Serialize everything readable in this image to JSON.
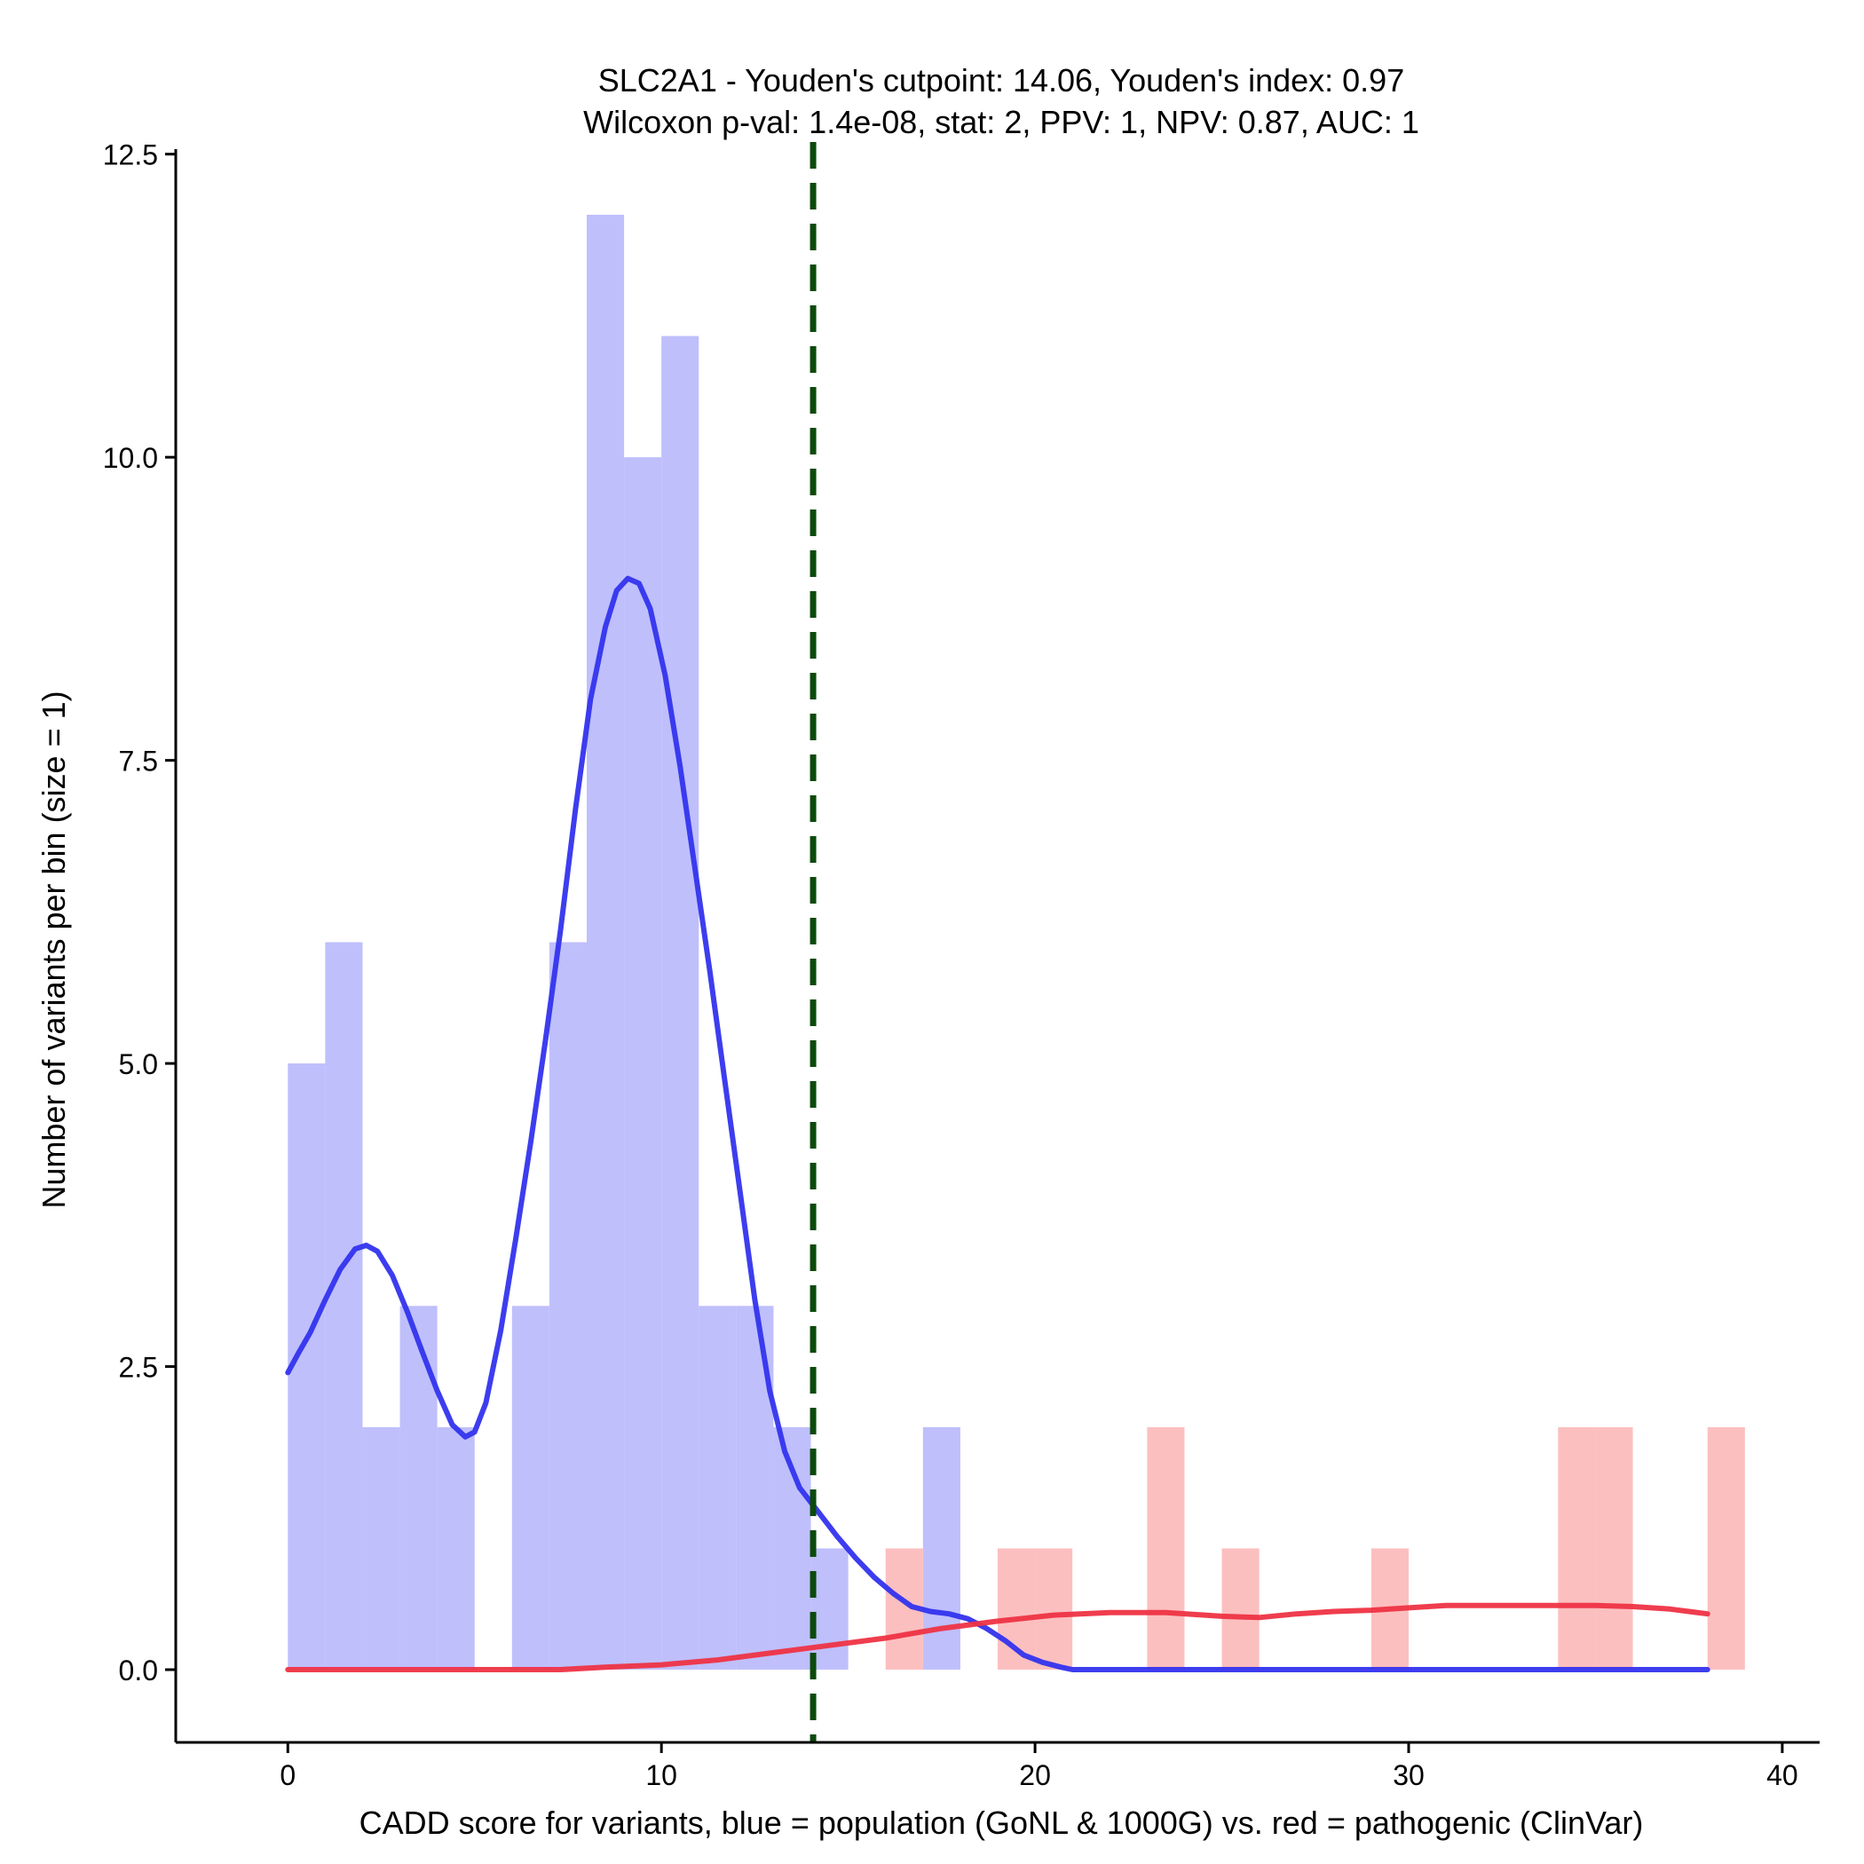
{
  "chart_data": {
    "type": "bar",
    "title_line1": "SLC2A1 - Youden's cutpoint: 14.06, Youden's index: 0.97",
    "title_line2": "Wilcoxon p-val: 1.4e-08, stat: 2, PPV: 1, NPV: 0.87, AUC: 1",
    "xlabel": "CADD score for variants, blue = population (GoNL & 1000G) vs. red = pathogenic (ClinVar)",
    "ylabel": "Number of variants per bin (size = 1)",
    "xlim": [
      -3,
      41
    ],
    "ylim": [
      -0.6,
      12.6
    ],
    "x_ticks": [
      0,
      10,
      20,
      30,
      40
    ],
    "x_tick_labels": [
      "0",
      "10",
      "20",
      "30",
      "40"
    ],
    "y_ticks": [
      0,
      2.5,
      5,
      7.5,
      10,
      12.5
    ],
    "y_tick_labels": [
      "0.0",
      "2.5",
      "5.0",
      "7.5",
      "10.0",
      "12.5"
    ],
    "bin_width": 1,
    "cutpoint": 14.06,
    "colors": {
      "population_bar": "#bfbffc",
      "pathogenic_bar": "#fcbfbf",
      "population_line": "#3333ee",
      "pathogenic_line": "#ee3344",
      "cutpoint_line": "#0b4a0b",
      "axis": "#000000"
    },
    "series": [
      {
        "name": "population (GoNL & 1000G)",
        "bins": [
          {
            "start": 0,
            "count": 5
          },
          {
            "start": 1,
            "count": 6
          },
          {
            "start": 2,
            "count": 2
          },
          {
            "start": 3,
            "count": 3
          },
          {
            "start": 4,
            "count": 2
          },
          {
            "start": 6,
            "count": 3
          },
          {
            "start": 7,
            "count": 6
          },
          {
            "start": 8,
            "count": 12
          },
          {
            "start": 9,
            "count": 10
          },
          {
            "start": 10,
            "count": 11
          },
          {
            "start": 11,
            "count": 3
          },
          {
            "start": 12,
            "count": 3
          },
          {
            "start": 13,
            "count": 2
          },
          {
            "start": 14,
            "count": 1
          },
          {
            "start": 17,
            "count": 2
          }
        ],
        "density_curve": [
          [
            0,
            2.45
          ],
          [
            0.3,
            2.62
          ],
          [
            0.6,
            2.78
          ],
          [
            1.0,
            3.05
          ],
          [
            1.4,
            3.3
          ],
          [
            1.8,
            3.47
          ],
          [
            2.1,
            3.5
          ],
          [
            2.4,
            3.45
          ],
          [
            2.8,
            3.25
          ],
          [
            3.2,
            2.95
          ],
          [
            3.6,
            2.62
          ],
          [
            4.0,
            2.3
          ],
          [
            4.4,
            2.02
          ],
          [
            4.75,
            1.92
          ],
          [
            5.0,
            1.96
          ],
          [
            5.3,
            2.2
          ],
          [
            5.7,
            2.8
          ],
          [
            6.1,
            3.55
          ],
          [
            6.5,
            4.35
          ],
          [
            6.9,
            5.2
          ],
          [
            7.3,
            6.1
          ],
          [
            7.7,
            7.1
          ],
          [
            8.1,
            8.0
          ],
          [
            8.5,
            8.6
          ],
          [
            8.8,
            8.9
          ],
          [
            9.1,
            9.0
          ],
          [
            9.4,
            8.96
          ],
          [
            9.7,
            8.75
          ],
          [
            10.1,
            8.2
          ],
          [
            10.5,
            7.45
          ],
          [
            10.9,
            6.6
          ],
          [
            11.3,
            5.75
          ],
          [
            11.7,
            4.85
          ],
          [
            12.1,
            3.95
          ],
          [
            12.5,
            3.05
          ],
          [
            12.9,
            2.3
          ],
          [
            13.3,
            1.8
          ],
          [
            13.7,
            1.5
          ],
          [
            14.2,
            1.3
          ],
          [
            14.7,
            1.1
          ],
          [
            15.2,
            0.92
          ],
          [
            15.7,
            0.76
          ],
          [
            16.2,
            0.63
          ],
          [
            16.7,
            0.52
          ],
          [
            17.2,
            0.48
          ],
          [
            17.7,
            0.46
          ],
          [
            18.2,
            0.42
          ],
          [
            18.7,
            0.34
          ],
          [
            19.2,
            0.24
          ],
          [
            19.7,
            0.12
          ],
          [
            20.2,
            0.06
          ],
          [
            20.7,
            0.02
          ],
          [
            21.0,
            0
          ],
          [
            38,
            0
          ]
        ]
      },
      {
        "name": "pathogenic (ClinVar)",
        "bins": [
          {
            "start": 16,
            "count": 1
          },
          {
            "start": 19,
            "count": 1
          },
          {
            "start": 20,
            "count": 1
          },
          {
            "start": 23,
            "count": 2
          },
          {
            "start": 25,
            "count": 1
          },
          {
            "start": 29,
            "count": 1
          },
          {
            "start": 34,
            "count": 2
          },
          {
            "start": 35,
            "count": 2
          },
          {
            "start": 38,
            "count": 2
          }
        ],
        "density_curve": [
          [
            0,
            0
          ],
          [
            7.3,
            0
          ],
          [
            8.5,
            0.02
          ],
          [
            10,
            0.04
          ],
          [
            11.5,
            0.08
          ],
          [
            13,
            0.14
          ],
          [
            14.5,
            0.2
          ],
          [
            16,
            0.26
          ],
          [
            17.5,
            0.34
          ],
          [
            19,
            0.4
          ],
          [
            20.5,
            0.45
          ],
          [
            22,
            0.47
          ],
          [
            23.5,
            0.47
          ],
          [
            25,
            0.44
          ],
          [
            26,
            0.43
          ],
          [
            27,
            0.46
          ],
          [
            28,
            0.48
          ],
          [
            29,
            0.49
          ],
          [
            30,
            0.51
          ],
          [
            31,
            0.53
          ],
          [
            32,
            0.53
          ],
          [
            33,
            0.53
          ],
          [
            34,
            0.53
          ],
          [
            35,
            0.53
          ],
          [
            36,
            0.52
          ],
          [
            37,
            0.5
          ],
          [
            38,
            0.46
          ]
        ]
      }
    ]
  }
}
